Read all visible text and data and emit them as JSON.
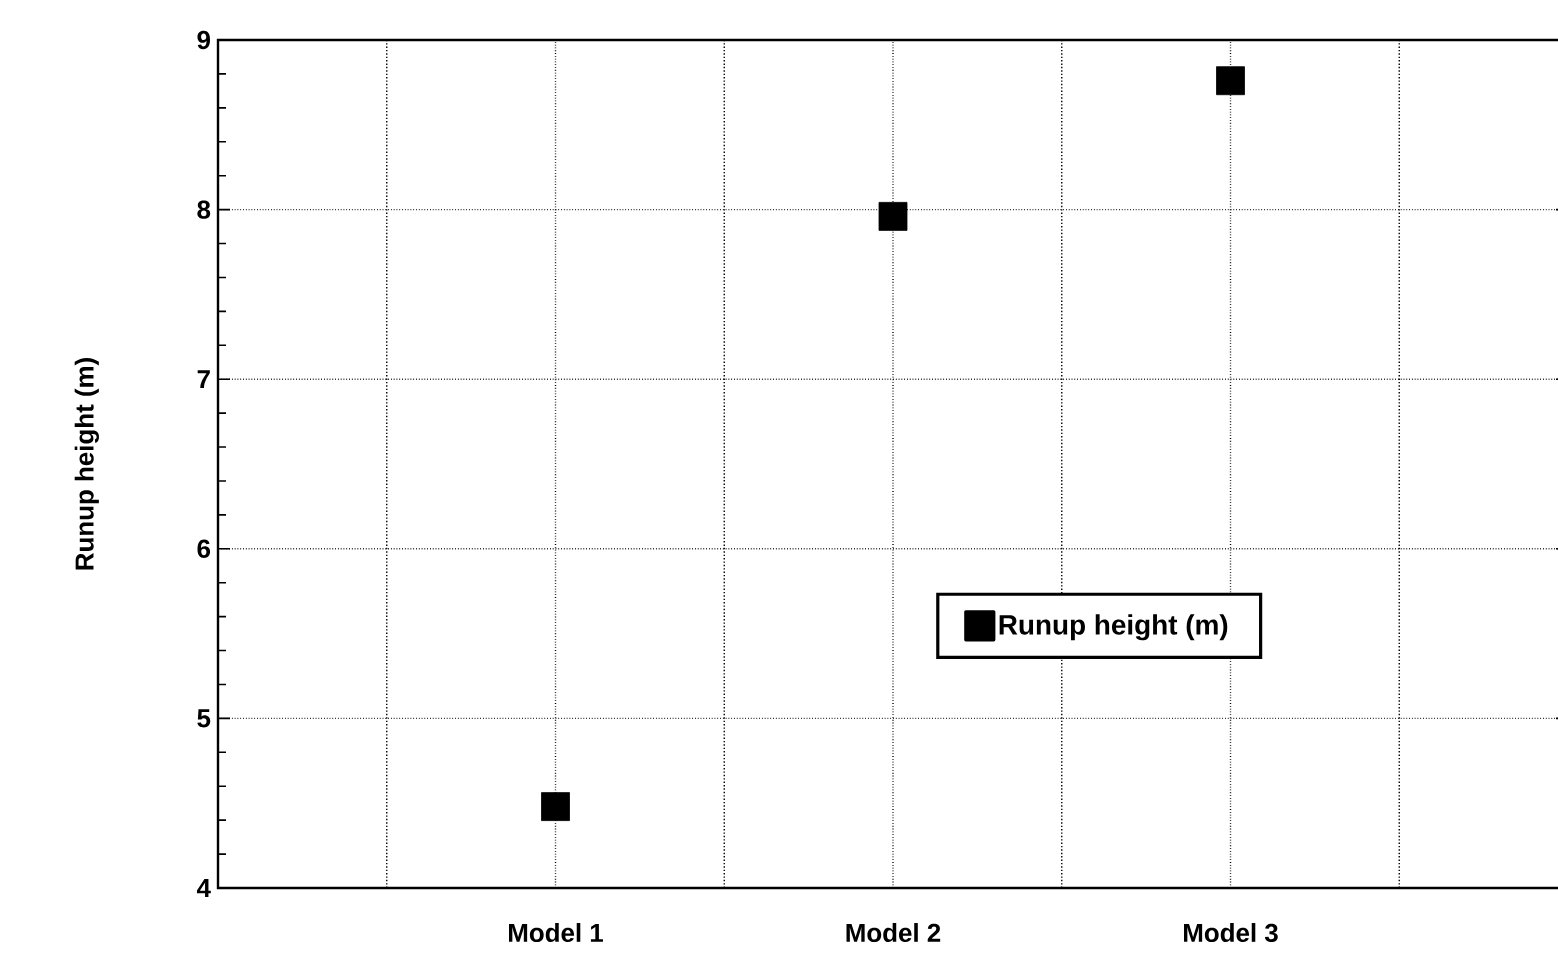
{
  "chart_data": {
    "type": "scatter",
    "ylabel": "Runup height (m)",
    "categories": [
      "Model 1",
      "Model 2",
      "Model 3"
    ],
    "series": [
      {
        "name": "Runup height (m)",
        "color": "#000000",
        "values": [
          4.48,
          7.96,
          8.76
        ]
      }
    ],
    "ylim": [
      4,
      9
    ],
    "yticks": [
      4,
      5,
      6,
      7,
      8,
      9
    ],
    "grid": true,
    "legend": "right",
    "marker": "square"
  }
}
